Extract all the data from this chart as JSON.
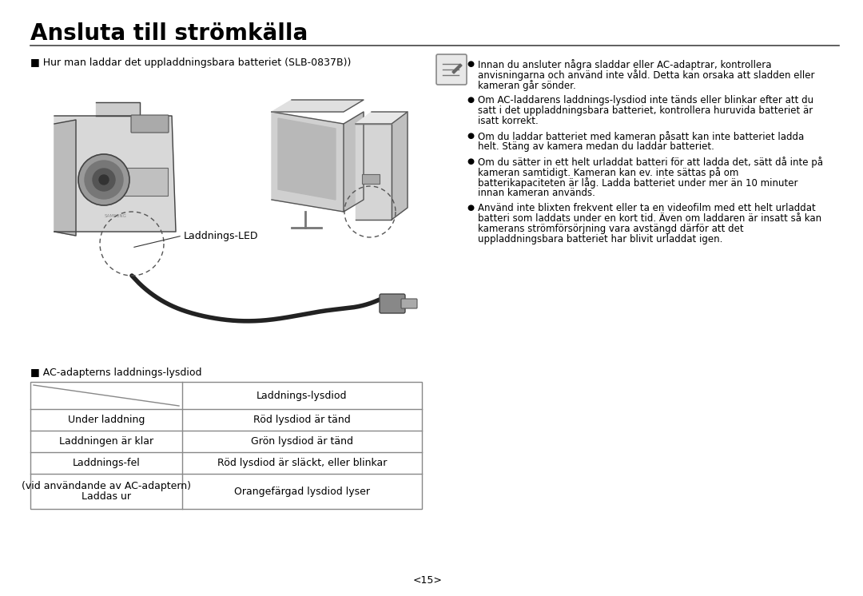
{
  "title": "Ansluta till strömkälla",
  "background_color": "#ffffff",
  "text_color": "#000000",
  "bullet_left_header": "■ Hur man laddar det uppladdningsbara batteriet (SLB-0837B))",
  "bullet_right_items": [
    "Innan du ansluter några sladdar eller AC-adaptrar, kontrollera\nanvisningarna och använd inte våld. Detta kan orsaka att sladden eller\nkameran går sönder.",
    "Om AC-laddarens laddnings-lysdiod inte tänds eller blinkar efter att du\nsatt i det uppladdningsbara batteriet, kontrollera huruvida batteriet är\nisatt korrekt.",
    "Om du laddar batteriet med kameran påsatt kan inte batteriet ladda\nhelt. Stäng av kamera medan du laddar batteriet.",
    "Om du sätter in ett helt urladdat batteri för att ladda det, sätt då inte på\nkameran samtidigt. Kameran kan ev. inte sättas på om\nbatterikapaciteten är låg. Ladda batteriet under mer än 10 minuter\ninnan kameran används.",
    "Använd inte blixten frekvent eller ta en videofilm med ett helt urladdat\nbatteri som laddats under en kort tid. Även om laddaren är insatt så kan\nkamerans strömförsörjning vara avstängd därför att det\nuppladdningsbara batteriet har blivit urladdat igen."
  ],
  "label_laddnings_led": "Laddnings-LED",
  "table_header": "■ AC-adapterns laddnings-lysdiod",
  "table_col2_header": "Laddnings-lysdiod",
  "table_rows": [
    [
      "Under laddning",
      "Röd lysdiod är tänd"
    ],
    [
      "Laddningen är klar",
      "Grön lysdiod är tänd"
    ],
    [
      "Laddnings-fel",
      "Röd lysdiod är släckt, eller blinkar"
    ],
    [
      "Laddas ur\n(vid användande av AC-adaptern)",
      "Orangefärgad lysdiod lyser"
    ]
  ],
  "page_number": "<15>"
}
